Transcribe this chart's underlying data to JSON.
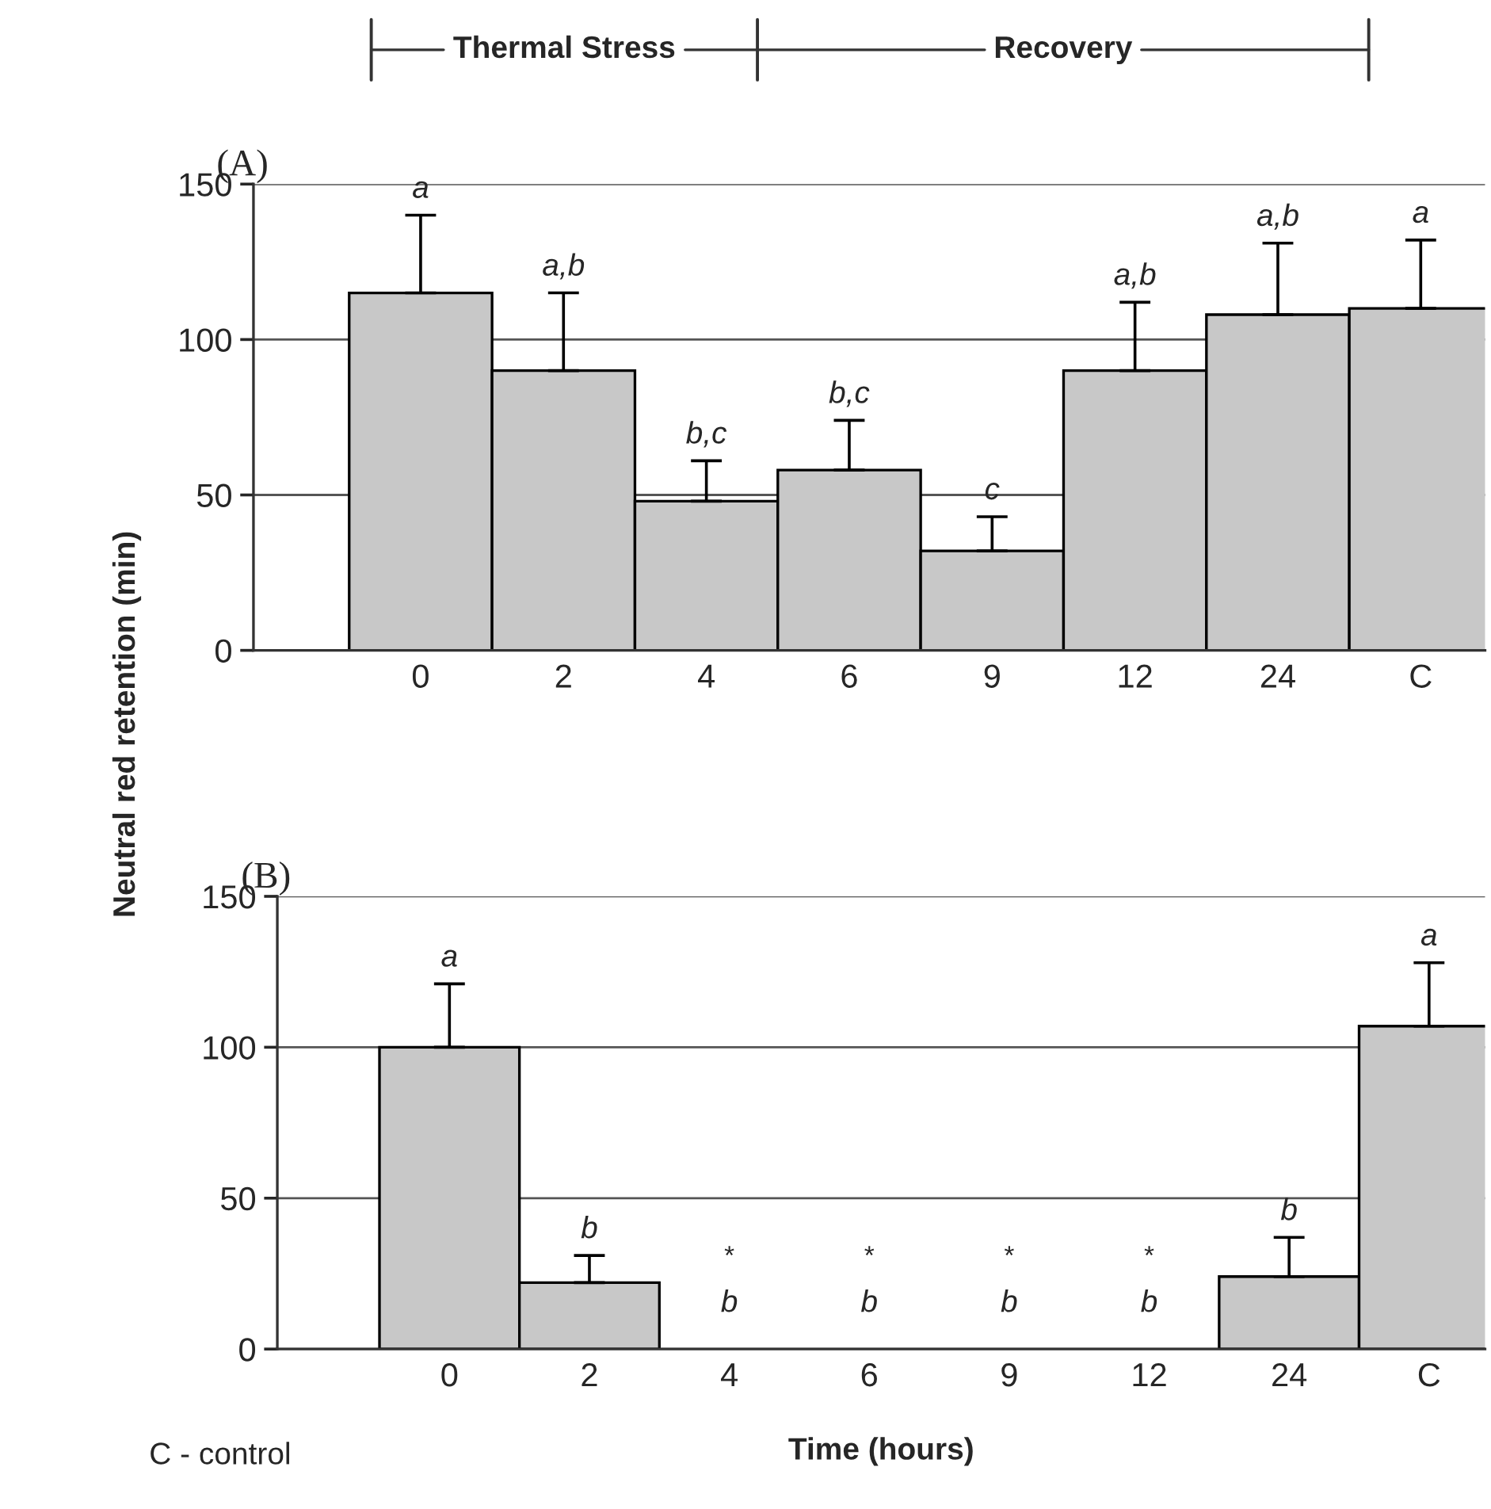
{
  "chart_data": [
    {
      "type": "bar",
      "title": "(A)",
      "ylabel": "Neutral red retention (min)",
      "categories": [
        "0",
        "2",
        "4",
        "6",
        "9",
        "12",
        "24",
        "C"
      ],
      "values": [
        115,
        90,
        48,
        58,
        32,
        90,
        108,
        110
      ],
      "errors": [
        [
          115,
          140
        ],
        [
          90,
          115
        ],
        [
          48,
          61
        ],
        [
          58,
          74
        ],
        [
          32,
          43
        ],
        [
          90,
          112
        ],
        [
          108,
          131
        ],
        [
          110,
          132
        ]
      ],
      "color": "#c8c8c8",
      "ylim": [
        0,
        150
      ],
      "yticks": [
        0,
        50,
        100,
        150
      ],
      "grid": "y",
      "annotations": [
        "Thermal Stress",
        "Recovery",
        "a",
        "a,b",
        "b,c",
        "b,c",
        "c",
        "a,b",
        "a,b",
        "a"
      ]
    },
    {
      "type": "bar",
      "title": "(B)",
      "xlabel": "Time (hours)",
      "categories": [
        "0",
        "2",
        "4",
        "6",
        "9",
        "12",
        "24",
        "C"
      ],
      "values": [
        100,
        22,
        null,
        null,
        null,
        null,
        24,
        107
      ],
      "errors": [
        [
          100,
          121
        ],
        [
          22,
          31
        ],
        null,
        null,
        null,
        null,
        [
          24,
          37
        ],
        [
          107,
          128
        ]
      ],
      "color": "#c8c8c8",
      "ylim": [
        0,
        150
      ],
      "yticks": [
        0,
        50,
        100,
        150
      ],
      "grid": "y",
      "annotations": [
        "C - control",
        "a",
        "b",
        "*",
        "b",
        "*",
        "b",
        "*",
        "b",
        "*",
        "b",
        "b",
        "a"
      ]
    }
  ]
}
